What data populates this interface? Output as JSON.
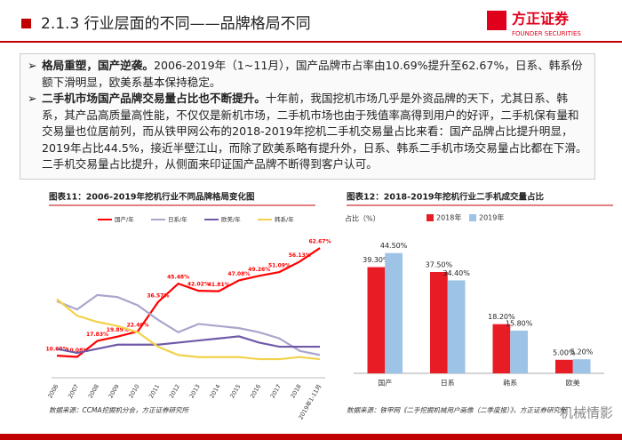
{
  "header": {
    "section": "2.1.3 行业层面的不同——品牌格局不同",
    "logo": "方正证券",
    "logo_en": "FOUNDER SECURITIES"
  },
  "bullets": [
    {
      "bold": "格局重塑，国产逆袭。",
      "text": "2006-2019年（1~11月），国产品牌市占率由10.69%提升至62.67%，日系、韩系份额下滑明显，欧美系基本保持稳定。"
    },
    {
      "bold": "二手机市场国产品牌交易量占比也不断提升。",
      "text": "十年前，我国挖机市场几乎是外资品牌的天下，尤其日系、韩系，其产品高质量高性能，不仅仅是新机市场，二手机市场也由于残值率高得到用户的好评，二手机保有量和交易量也位居前列，而从铁甲网公布的2018-2019年挖机二手机交易量占比来看：国产品牌占比提升明显，2019年占比44.5%，接近半壁江山，而除了欧美系略有提升外，日系、韩系二手机市场交易量占比都在下滑。二手机交易量占比提升，从侧面来印证国产品牌不断得到客户认可。"
    }
  ],
  "chart_data": [
    {
      "type": "line",
      "title": "图表11：2006-2019年挖机行业不同品牌格局变化图",
      "categories": [
        "2006",
        "2007",
        "2008",
        "2009",
        "2010",
        "2011",
        "2012",
        "2013",
        "2014",
        "2015",
        "2016",
        "2017",
        "2018",
        "2019年1-11月"
      ],
      "ylim": [
        0,
        70
      ],
      "series": [
        {
          "name": "国产/年",
          "color": "#ff0000",
          "values": [
            10.69,
            10.08,
            17.83,
            19.89,
            22.4,
            36.57,
            45.48,
            42.02,
            41.81,
            47.08,
            49.26,
            51.09,
            56.13,
            62.67
          ],
          "value_labels": [
            "10.69%",
            "10.08%",
            "17.83%",
            "19.89%",
            "22.40%",
            "36.57%",
            "45.48%",
            "42.02%",
            "41.81%",
            "47.08%",
            "49.26%",
            "51.09%",
            "56.13%",
            "62.67%"
          ]
        },
        {
          "name": "日系/年",
          "color": "#a9a6cc",
          "values": [
            37,
            33,
            40,
            39,
            35,
            28,
            22,
            26,
            25,
            24,
            22,
            19,
            13,
            11
          ]
        },
        {
          "name": "欧美/年",
          "color": "#6f5aa8",
          "values": [
            14,
            12,
            14,
            16,
            16,
            16,
            17,
            18,
            19,
            20,
            17,
            15,
            15,
            15
          ]
        },
        {
          "name": "韩系/年",
          "color": "#f2d24a",
          "values": [
            38,
            30,
            27,
            25,
            22,
            15,
            11,
            10,
            10,
            10,
            9,
            9,
            10,
            9
          ]
        }
      ],
      "source": "数据来源：CCMA挖掘机分会，方正证券研究所"
    },
    {
      "type": "bar",
      "title": "图表12：2018-2019年挖机行业二手机成交量占比",
      "ylabel": "占比（%）",
      "categories": [
        "国产",
        "日系",
        "韩系",
        "欧美"
      ],
      "ylim": [
        0,
        50
      ],
      "series": [
        {
          "name": "2018年",
          "color": "#e81c24",
          "values": [
            39.3,
            37.5,
            18.2,
            5.0
          ],
          "value_labels": [
            "39.30%",
            "37.50%",
            "18.20%",
            "5.00%"
          ]
        },
        {
          "name": "2019年",
          "color": "#9dc3e6",
          "values": [
            44.5,
            34.4,
            15.8,
            5.2
          ],
          "value_labels": [
            "44.50%",
            "34.40%",
            "15.80%",
            "5.20%"
          ]
        }
      ],
      "source": "数据来源：铁甲网《二手挖掘机械用户画像（二季度报）》，方正证券研究所"
    }
  ],
  "watermark": "机械情影"
}
